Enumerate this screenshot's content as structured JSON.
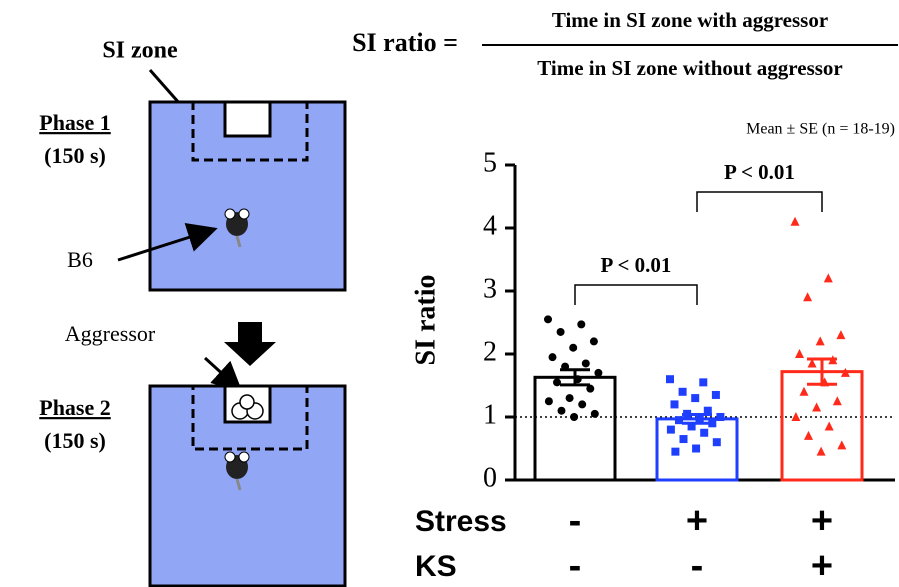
{
  "chart_data": {
    "type": "bar",
    "formula": {
      "lhs": "SI ratio =",
      "numerator": "Time in SI zone with aggressor",
      "denominator": "Time in SI zone without aggressor"
    },
    "subtitle": "Mean ± SE (n = 18-19)",
    "y_label": "SI ratio",
    "categories": [
      null,
      null,
      null
    ],
    "values": [
      1.63,
      0.97,
      1.72
    ],
    "errors": [
      0.12,
      0.07,
      0.2
    ],
    "colors": [
      "#000000",
      "#1f3fff",
      "#ff2a1a"
    ],
    "markers": [
      "circle",
      "square",
      "triangle"
    ],
    "points": [
      [
        2.55,
        2.47,
        2.35,
        2.2,
        2.1,
        1.95,
        1.85,
        1.8,
        1.7,
        1.6,
        1.55,
        1.45,
        1.3,
        1.25,
        1.2,
        1.1,
        1.05,
        1.0
      ],
      [
        1.6,
        1.55,
        1.4,
        1.35,
        1.3,
        1.2,
        1.1,
        1.05,
        1.0,
        0.98,
        0.95,
        0.9,
        0.85,
        0.8,
        0.75,
        0.65,
        0.6,
        0.5,
        0.45
      ],
      [
        4.1,
        3.2,
        2.9,
        2.3,
        2.2,
        2.0,
        1.9,
        1.85,
        1.7,
        1.55,
        1.4,
        1.25,
        1.15,
        1.0,
        0.85,
        0.7,
        0.55,
        0.45
      ]
    ],
    "reference_line": 1,
    "comparisons": [
      {
        "label": "P < 0.01"
      },
      {
        "label": "P < 0.01"
      }
    ],
    "row_labels": [
      "Stress",
      "KS"
    ],
    "rows": [
      [
        "-",
        "+",
        "+"
      ],
      [
        "-",
        "-",
        "+"
      ]
    ],
    "ylim": [
      0,
      5
    ],
    "yticks": [
      0,
      1,
      2,
      3,
      4,
      5
    ]
  },
  "diagram": {
    "si_zone": "SI zone",
    "phase1": "Phase 1",
    "phase1_time": "(150 s)",
    "b6": "B6",
    "aggressor": "Aggressor",
    "phase2": "Phase 2",
    "phase2_time": "(150 s)"
  }
}
